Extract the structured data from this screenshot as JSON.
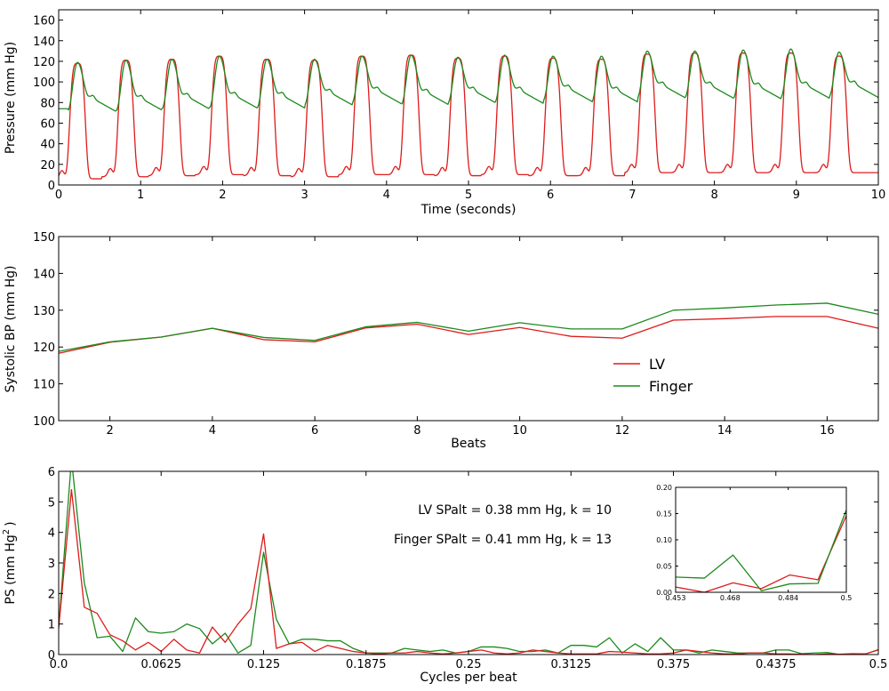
{
  "colors": {
    "lv": "#dd1c1c",
    "finger": "#1c8a1c"
  },
  "chart_data": [
    {
      "type": "line",
      "title": "",
      "xlabel": "Time (seconds)",
      "ylabel": "Pressure (mm Hg)",
      "xlim": [
        0,
        10
      ],
      "ylim": [
        0,
        170
      ],
      "xticks": [
        0,
        1,
        2,
        3,
        4,
        5,
        6,
        7,
        8,
        9,
        10
      ],
      "xtick_labels": [
        "0",
        "1",
        "2",
        "3",
        "4",
        "5",
        "6",
        "7",
        "8",
        "9",
        "10"
      ],
      "yticks": [
        0,
        20,
        40,
        60,
        80,
        100,
        120,
        140,
        160
      ],
      "ytick_labels": [
        "0",
        "20",
        "40",
        "60",
        "80",
        "100",
        "120",
        "140",
        "160"
      ],
      "grid": false,
      "beat_period_s": 0.575,
      "series": [
        {
          "name": "LV",
          "color": "lv",
          "beats": [
            {
              "t": 0.23,
              "sys": 118,
              "dia": 6
            },
            {
              "t": 0.82,
              "sys": 121,
              "dia": 8
            },
            {
              "t": 1.38,
              "sys": 122,
              "dia": 9
            },
            {
              "t": 1.96,
              "sys": 125,
              "dia": 10
            },
            {
              "t": 2.54,
              "sys": 122,
              "dia": 9
            },
            {
              "t": 3.12,
              "sys": 121,
              "dia": 8
            },
            {
              "t": 3.7,
              "sys": 125,
              "dia": 10
            },
            {
              "t": 4.3,
              "sys": 126,
              "dia": 10
            },
            {
              "t": 4.87,
              "sys": 123,
              "dia": 9
            },
            {
              "t": 5.44,
              "sys": 125,
              "dia": 10
            },
            {
              "t": 6.03,
              "sys": 123,
              "dia": 9
            },
            {
              "t": 6.62,
              "sys": 122,
              "dia": 9
            },
            {
              "t": 7.18,
              "sys": 127,
              "dia": 12
            },
            {
              "t": 7.76,
              "sys": 128,
              "dia": 12
            },
            {
              "t": 8.35,
              "sys": 128,
              "dia": 12
            },
            {
              "t": 8.93,
              "sys": 128,
              "dia": 12
            },
            {
              "t": 9.52,
              "sys": 125,
              "dia": 12
            }
          ]
        },
        {
          "name": "Finger",
          "color": "finger",
          "beats": [
            {
              "t": 0.23,
              "sys": 119,
              "dia": 72
            },
            {
              "t": 0.82,
              "sys": 121,
              "dia": 72
            },
            {
              "t": 1.38,
              "sys": 122,
              "dia": 74
            },
            {
              "t": 1.96,
              "sys": 125,
              "dia": 75
            },
            {
              "t": 2.54,
              "sys": 122,
              "dia": 75
            },
            {
              "t": 3.12,
              "sys": 122,
              "dia": 78
            },
            {
              "t": 3.7,
              "sys": 125,
              "dia": 80
            },
            {
              "t": 4.3,
              "sys": 126,
              "dia": 78
            },
            {
              "t": 4.87,
              "sys": 124,
              "dia": 80
            },
            {
              "t": 5.44,
              "sys": 126,
              "dia": 80
            },
            {
              "t": 6.03,
              "sys": 125,
              "dia": 82
            },
            {
              "t": 6.62,
              "sys": 125,
              "dia": 80
            },
            {
              "t": 7.18,
              "sys": 130,
              "dia": 85
            },
            {
              "t": 7.76,
              "sys": 130,
              "dia": 85
            },
            {
              "t": 8.35,
              "sys": 131,
              "dia": 84
            },
            {
              "t": 8.93,
              "sys": 132,
              "dia": 85
            },
            {
              "t": 9.52,
              "sys": 129,
              "dia": 86
            }
          ]
        }
      ]
    },
    {
      "type": "line",
      "title": "",
      "xlabel": "Beats",
      "ylabel": "Systolic BP (mm Hg)",
      "xlim": [
        1,
        17
      ],
      "ylim": [
        100,
        150
      ],
      "xticks": [
        2,
        4,
        6,
        8,
        10,
        12,
        14,
        16
      ],
      "xtick_labels": [
        "2",
        "4",
        "6",
        "8",
        "10",
        "12",
        "14",
        "16"
      ],
      "yticks": [
        100,
        110,
        120,
        130,
        140,
        150
      ],
      "ytick_labels": [
        "100",
        "110",
        "120",
        "130",
        "140",
        "150"
      ],
      "grid": false,
      "legend": {
        "placement": "lower-right",
        "entries": [
          "LV",
          "Finger"
        ]
      },
      "x": [
        1,
        2,
        3,
        4,
        5,
        6,
        7,
        8,
        9,
        10,
        11,
        12,
        13,
        14,
        15,
        16,
        17
      ],
      "series": [
        {
          "name": "LV",
          "color": "lv",
          "values": [
            118.3,
            121.3,
            122.7,
            125.1,
            122.0,
            121.4,
            125.2,
            126.2,
            123.4,
            125.3,
            122.9,
            122.4,
            127.3,
            127.7,
            128.3,
            128.3,
            125.1
          ]
        },
        {
          "name": "Finger",
          "color": "finger",
          "values": [
            118.8,
            121.4,
            122.7,
            125.1,
            122.6,
            121.8,
            125.5,
            126.7,
            124.3,
            126.6,
            124.9,
            124.9,
            130.0,
            130.6,
            131.4,
            131.9,
            128.9
          ]
        }
      ]
    },
    {
      "type": "line",
      "title": "",
      "xlabel": "Cycles per beat",
      "ylabel": "PS (mm Hg",
      "ylabel_sup": "2",
      "ylabel_close": ")",
      "xlim": [
        0,
        0.5
      ],
      "ylim": [
        0,
        6
      ],
      "xticks": [
        0,
        0.0625,
        0.125,
        0.1875,
        0.25,
        0.3125,
        0.375,
        0.4375,
        0.5
      ],
      "xtick_labels": [
        "0.0",
        "0.0625",
        "0.125",
        "0.1875",
        "0.25",
        "0.3125",
        "0.375",
        "0.4375",
        "0.5"
      ],
      "yticks": [
        0,
        1,
        2,
        3,
        4,
        5,
        6
      ],
      "ytick_labels": [
        "0",
        "1",
        "2",
        "3",
        "4",
        "5",
        "6"
      ],
      "grid": false,
      "annotations": [
        "LV SPalt = 0.38 mm Hg, k = 10",
        "Finger SPalt = 0.41 mm Hg, k = 13"
      ],
      "x": [
        0,
        0.0078125,
        0.015625,
        0.0234375,
        0.03125,
        0.0390625,
        0.046875,
        0.0546875,
        0.0625,
        0.0703125,
        0.078125,
        0.0859375,
        0.09375,
        0.1015625,
        0.109375,
        0.1171875,
        0.125,
        0.1328125,
        0.140625,
        0.1484375,
        0.15625,
        0.1640625,
        0.171875,
        0.1796875,
        0.1875,
        0.1953125,
        0.203125,
        0.2109375,
        0.21875,
        0.2265625,
        0.234375,
        0.2421875,
        0.25,
        0.2578125,
        0.265625,
        0.2734375,
        0.28125,
        0.2890625,
        0.296875,
        0.3046875,
        0.3125,
        0.3203125,
        0.328125,
        0.3359375,
        0.34375,
        0.3515625,
        0.359375,
        0.3671875,
        0.375,
        0.3828125,
        0.390625,
        0.3984375,
        0.40625,
        0.4140625,
        0.421875,
        0.4296875,
        0.4375,
        0.4453125,
        0.453125,
        0.4609375,
        0.46875,
        0.4765625,
        0.484375,
        0.4921875,
        0.5
      ],
      "series": [
        {
          "name": "LV",
          "color": "lv",
          "values": [
            0.85,
            5.4,
            1.55,
            1.35,
            0.65,
            0.45,
            0.15,
            0.4,
            0.1,
            0.5,
            0.15,
            0.05,
            0.9,
            0.4,
            1.0,
            1.5,
            3.95,
            0.2,
            0.35,
            0.4,
            0.1,
            0.3,
            0.2,
            0.1,
            0.05,
            0.02,
            0.05,
            0.05,
            0.1,
            0.05,
            0.02,
            0.05,
            0.1,
            0.15,
            0.05,
            0.02,
            0.05,
            0.15,
            0.1,
            0.05,
            0.02,
            0.02,
            0.02,
            0.1,
            0.08,
            0.05,
            0.02,
            0.02,
            0.05,
            0.15,
            0.1,
            0.05,
            0.02,
            0.02,
            0.05,
            0.05,
            0.02,
            0.02,
            0.01,
            0.0,
            0.02,
            0.01,
            0.03,
            0.02,
            0.15
          ]
        },
        {
          "name": "Finger",
          "color": "finger",
          "values": [
            0.9,
            6.4,
            2.35,
            0.55,
            0.6,
            0.1,
            1.2,
            0.75,
            0.7,
            0.75,
            1.0,
            0.85,
            0.35,
            0.7,
            0.05,
            0.3,
            3.35,
            1.15,
            0.35,
            0.5,
            0.5,
            0.45,
            0.45,
            0.2,
            0.05,
            0.05,
            0.05,
            0.2,
            0.15,
            0.1,
            0.15,
            0.05,
            0.1,
            0.25,
            0.25,
            0.2,
            0.1,
            0.1,
            0.15,
            0.05,
            0.3,
            0.3,
            0.25,
            0.55,
            0.05,
            0.35,
            0.1,
            0.55,
            0.15,
            0.15,
            0.05,
            0.15,
            0.1,
            0.05,
            0.05,
            0.05,
            0.15,
            0.15,
            0.03,
            0.05,
            0.07,
            0.0,
            0.02,
            0.02,
            0.16
          ]
        }
      ]
    },
    {
      "type": "line",
      "title": "inset",
      "xlim": [
        0.453,
        0.5
      ],
      "ylim": [
        0,
        0.2
      ],
      "xticks": [
        0.453,
        0.468,
        0.484,
        0.5
      ],
      "xtick_labels": [
        "0.453",
        "0.468",
        "0.484",
        "0.5"
      ],
      "yticks": [
        0,
        0.05,
        0.1,
        0.15,
        0.2
      ],
      "ytick_labels": [
        "0.00",
        "0.05",
        "0.10",
        "0.15",
        "0.20"
      ],
      "grid": false,
      "x": [
        0.453,
        0.4609,
        0.4688,
        0.4766,
        0.4844,
        0.4922,
        0.5
      ],
      "series": [
        {
          "name": "LV",
          "color": "lv",
          "values": [
            0.01,
            0.0,
            0.018,
            0.007,
            0.033,
            0.024,
            0.146
          ]
        },
        {
          "name": "Finger",
          "color": "finger",
          "values": [
            0.029,
            0.027,
            0.071,
            0.003,
            0.016,
            0.017,
            0.157
          ]
        }
      ]
    }
  ]
}
